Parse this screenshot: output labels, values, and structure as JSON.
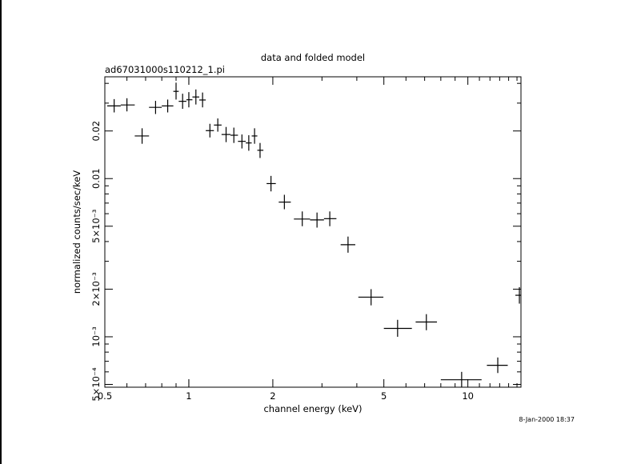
{
  "chart_data": {
    "type": "scatter",
    "title": "data and folded model",
    "subtitle": "ad67031000s110212_1.pi",
    "xlabel": "channel energy (keV)",
    "ylabel": "normalized counts/sec/keV",
    "timestamp": "8-Jan-2000 18:37",
    "x_scale": "log",
    "y_scale": "log",
    "xlim": [
      0.5,
      15.5
    ],
    "ylim": [
      0.00048,
      0.044
    ],
    "x_tick_labels": [
      {
        "value": 0.5,
        "label": "0.5"
      },
      {
        "value": 1,
        "label": "1"
      },
      {
        "value": 2,
        "label": "2"
      },
      {
        "value": 5,
        "label": "5"
      },
      {
        "value": 10,
        "label": "10"
      }
    ],
    "y_tick_labels": [
      {
        "value": 0.0005,
        "label": "5×10⁻⁴"
      },
      {
        "value": 0.001,
        "label": "10⁻³"
      },
      {
        "value": 0.002,
        "label": "2×10⁻³"
      },
      {
        "value": 0.005,
        "label": "5×10⁻³"
      },
      {
        "value": 0.01,
        "label": "0.01"
      },
      {
        "value": 0.02,
        "label": "0.02"
      }
    ],
    "grid": false,
    "points": [
      {
        "x": 0.54,
        "xlo": 0.51,
        "xhi": 0.57,
        "y": 0.0288,
        "ylo": 0.0262,
        "yhi": 0.0318
      },
      {
        "x": 0.6,
        "xlo": 0.57,
        "xhi": 0.64,
        "y": 0.0292,
        "ylo": 0.0266,
        "yhi": 0.0322
      },
      {
        "x": 0.68,
        "xlo": 0.64,
        "xhi": 0.72,
        "y": 0.0186,
        "ylo": 0.0166,
        "yhi": 0.0208
      },
      {
        "x": 0.76,
        "xlo": 0.72,
        "xhi": 0.8,
        "y": 0.0282,
        "ylo": 0.0256,
        "yhi": 0.031
      },
      {
        "x": 0.84,
        "xlo": 0.8,
        "xhi": 0.88,
        "y": 0.0288,
        "ylo": 0.0262,
        "yhi": 0.0316
      },
      {
        "x": 0.9,
        "xlo": 0.88,
        "xhi": 0.92,
        "y": 0.0356,
        "ylo": 0.0316,
        "yhi": 0.0404
      },
      {
        "x": 0.95,
        "xlo": 0.92,
        "xhi": 0.98,
        "y": 0.0308,
        "ylo": 0.0276,
        "yhi": 0.0344
      },
      {
        "x": 1.0,
        "xlo": 0.98,
        "xhi": 1.03,
        "y": 0.0315,
        "ylo": 0.0282,
        "yhi": 0.0352
      },
      {
        "x": 1.06,
        "xlo": 1.03,
        "xhi": 1.09,
        "y": 0.0328,
        "ylo": 0.0294,
        "yhi": 0.0366
      },
      {
        "x": 1.12,
        "xlo": 1.09,
        "xhi": 1.15,
        "y": 0.0314,
        "ylo": 0.0282,
        "yhi": 0.035
      },
      {
        "x": 1.19,
        "xlo": 1.15,
        "xhi": 1.23,
        "y": 0.0201,
        "ylo": 0.0182,
        "yhi": 0.0222
      },
      {
        "x": 1.27,
        "xlo": 1.23,
        "xhi": 1.31,
        "y": 0.0218,
        "ylo": 0.0198,
        "yhi": 0.024
      },
      {
        "x": 1.36,
        "xlo": 1.31,
        "xhi": 1.41,
        "y": 0.019,
        "ylo": 0.017,
        "yhi": 0.0212
      },
      {
        "x": 1.45,
        "xlo": 1.41,
        "xhi": 1.5,
        "y": 0.0188,
        "ylo": 0.0168,
        "yhi": 0.021
      },
      {
        "x": 1.55,
        "xlo": 1.5,
        "xhi": 1.6,
        "y": 0.0172,
        "ylo": 0.0155,
        "yhi": 0.019
      },
      {
        "x": 1.64,
        "xlo": 1.6,
        "xhi": 1.68,
        "y": 0.0168,
        "ylo": 0.015,
        "yhi": 0.0188
      },
      {
        "x": 1.72,
        "xlo": 1.68,
        "xhi": 1.76,
        "y": 0.0186,
        "ylo": 0.0166,
        "yhi": 0.0208
      },
      {
        "x": 1.8,
        "xlo": 1.76,
        "xhi": 1.85,
        "y": 0.0151,
        "ylo": 0.0135,
        "yhi": 0.0168
      },
      {
        "x": 1.97,
        "xlo": 1.9,
        "xhi": 2.05,
        "y": 0.0093,
        "ylo": 0.0083,
        "yhi": 0.0104
      },
      {
        "x": 2.2,
        "xlo": 2.1,
        "xhi": 2.32,
        "y": 0.0071,
        "ylo": 0.0064,
        "yhi": 0.0079
      },
      {
        "x": 2.55,
        "xlo": 2.38,
        "xhi": 2.72,
        "y": 0.00555,
        "ylo": 0.005,
        "yhi": 0.0062
      },
      {
        "x": 2.88,
        "xlo": 2.72,
        "xhi": 3.05,
        "y": 0.00548,
        "ylo": 0.0049,
        "yhi": 0.0061
      },
      {
        "x": 3.2,
        "xlo": 3.05,
        "xhi": 3.38,
        "y": 0.00558,
        "ylo": 0.005,
        "yhi": 0.0062
      },
      {
        "x": 3.72,
        "xlo": 3.5,
        "xhi": 3.95,
        "y": 0.00382,
        "ylo": 0.0034,
        "yhi": 0.0043
      },
      {
        "x": 4.5,
        "xlo": 4.05,
        "xhi": 4.98,
        "y": 0.00178,
        "ylo": 0.00158,
        "yhi": 0.002
      },
      {
        "x": 5.6,
        "xlo": 5.0,
        "xhi": 6.3,
        "y": 0.00113,
        "ylo": 0.001,
        "yhi": 0.00128
      },
      {
        "x": 7.1,
        "xlo": 6.5,
        "xhi": 7.75,
        "y": 0.00124,
        "ylo": 0.0011,
        "yhi": 0.00139
      },
      {
        "x": 9.5,
        "xlo": 8.0,
        "xhi": 11.2,
        "y": 0.000535,
        "ylo": 0.00048,
        "yhi": 0.0006
      },
      {
        "x": 12.8,
        "xlo": 11.7,
        "xhi": 13.9,
        "y": 0.00066,
        "ylo": 0.00059,
        "yhi": 0.00074
      },
      {
        "x": 15.3,
        "xlo": 14.8,
        "xhi": 15.5,
        "y": 0.00183,
        "ylo": 0.00162,
        "yhi": 0.00206
      }
    ]
  }
}
